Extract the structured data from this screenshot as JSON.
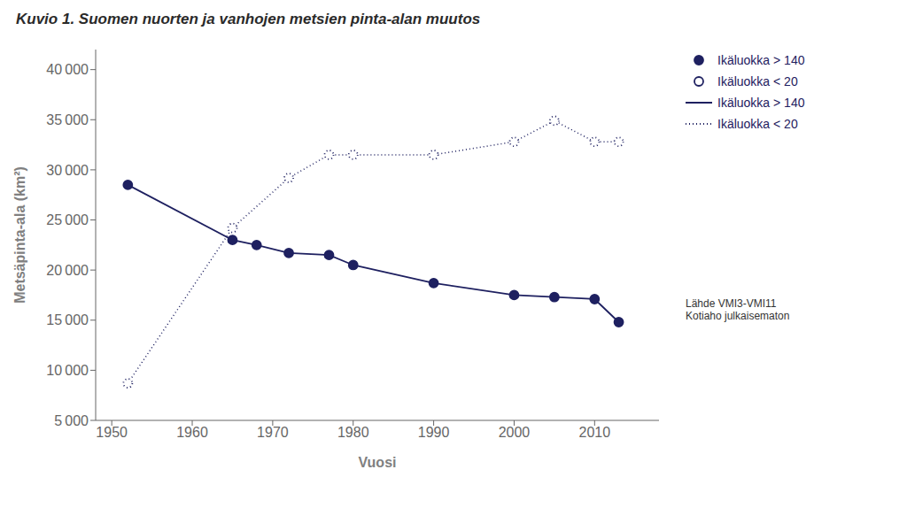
{
  "chart_data": {
    "type": "line",
    "title": "Kuvio 1. Suomen nuorten ja vanhojen metsien pinta-alan muutos",
    "xlabel": "Vuosi",
    "ylabel": "Metsäpinta-ala (km²)",
    "series": [
      {
        "name": "Ikäluokka > 140",
        "color": "#1e2060",
        "marker": "circle",
        "line_style": "solid",
        "x": [
          1952,
          1965,
          1968,
          1972,
          1977,
          1980,
          1990,
          2000,
          2005,
          2010,
          2013
        ],
        "values": [
          28500,
          23000,
          22500,
          21700,
          21500,
          20500,
          18700,
          17500,
          17300,
          17100,
          14800
        ]
      },
      {
        "name": "Ikäluokka < 20",
        "color": "#1e2060",
        "marker": "open_circle",
        "line_style": "dotted",
        "x": [
          1952,
          1965,
          1972,
          1977,
          1980,
          1990,
          2000,
          2005,
          2010,
          2013
        ],
        "values": [
          8700,
          24200,
          29200,
          31500,
          31500,
          31500,
          32800,
          34900,
          32800,
          32800
        ]
      }
    ],
    "xlim": [
      1948,
      2018
    ],
    "xticks": [
      1950,
      1960,
      1970,
      1980,
      1990,
      2000,
      2010
    ],
    "ylim": [
      5000,
      42000
    ],
    "yticks": [
      {
        "value": 5000,
        "label": "5 000"
      },
      {
        "value": 10000,
        "label": "10 000"
      },
      {
        "value": 15000,
        "label": "15 000"
      },
      {
        "value": 20000,
        "label": "20 000"
      },
      {
        "value": 25000,
        "label": "25 000"
      },
      {
        "value": 30000,
        "label": "30 000"
      },
      {
        "value": 35000,
        "label": "35 000"
      },
      {
        "value": 40000,
        "label": "40 000"
      }
    ],
    "grid": false,
    "legend": "right",
    "annotation": "Lähde VMI3-VMI11\nKotiaho julkaisematon"
  }
}
